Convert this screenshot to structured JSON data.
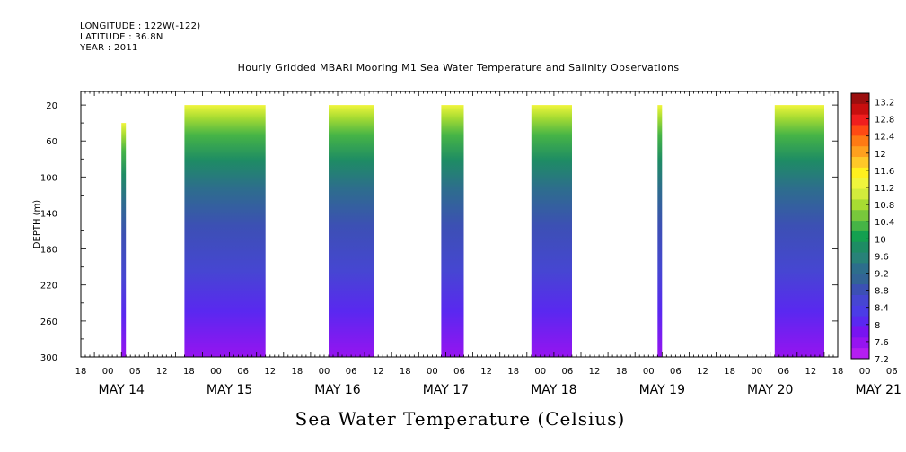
{
  "header": {
    "longitude": "LONGITUDE : 122W(-122)",
    "latitude": "LATITUDE : 36.8N",
    "year": "YEAR : 2011"
  },
  "chart_data": {
    "type": "heatmap",
    "title": "Hourly Gridded MBARI Mooring M1 Sea Water Temperature and Salinity Observations",
    "xlabel": "Sea Water Temperature (Celsius)",
    "ylabel": "DEPTH (m)",
    "y_ticks": [
      20,
      60,
      100,
      140,
      180,
      220,
      260,
      300
    ],
    "ylim": [
      300,
      5
    ],
    "y_inverted": true,
    "xlim_hours": [
      -9,
      159
    ],
    "x_hour_ticks": [
      "18",
      "00",
      "06",
      "12",
      "18",
      "00",
      "06",
      "12",
      "18",
      "00",
      "06",
      "12",
      "18",
      "00",
      "06",
      "12",
      "18",
      "00",
      "06",
      "12",
      "18",
      "00",
      "06",
      "12",
      "18",
      "00",
      "06",
      "12",
      "18",
      "00",
      "06",
      "12",
      "18",
      "00",
      "06",
      "12"
    ],
    "x_date_labels": [
      "MAY 14",
      "MAY 15",
      "MAY 16",
      "MAY 17",
      "MAY 18",
      "MAY 19",
      "MAY 20",
      "MAY 21"
    ],
    "colorbar": {
      "labels": [
        "13.2",
        "12.8",
        "12.4",
        "12",
        "11.6",
        "11.2",
        "10.8",
        "10.4",
        "10",
        "9.6",
        "9.2",
        "8.8",
        "8.4",
        "8",
        "7.6",
        "7.2"
      ],
      "range": [
        7.2,
        13.4
      ],
      "colors": [
        "#9b0f0f",
        "#c80f0f",
        "#f01e1e",
        "#ff4a14",
        "#ff7a14",
        "#ffa01e",
        "#ffc828",
        "#fff01e",
        "#f0f53c",
        "#d2ec3c",
        "#a8dc32",
        "#78c83c",
        "#46b446",
        "#14a050",
        "#1e8c64",
        "#288278",
        "#2d6e8c",
        "#326496",
        "#3c50b4",
        "#4646d2",
        "#4b3ce6",
        "#5a28f0",
        "#7814f0",
        "#9614f0",
        "#b41ef0"
      ]
    },
    "series": [
      {
        "name": "May 14 00h",
        "x": [
          0,
          1
        ],
        "depth_range": [
          40,
          300
        ]
      },
      {
        "name": "May 14 14h - May 15 08h",
        "x": [
          14,
          32
        ],
        "depth_range": [
          20,
          300
        ]
      },
      {
        "name": "May 15 22h - May 16 08h",
        "x": [
          46,
          56
        ],
        "depth_range": [
          20,
          300
        ]
      },
      {
        "name": "May 16 23h - May 17 04h",
        "x": [
          71,
          76
        ],
        "depth_range": [
          20,
          300
        ]
      },
      {
        "name": "May 17 19h - May 18 04h",
        "x": [
          91,
          100
        ],
        "depth_range": [
          20,
          300
        ]
      },
      {
        "name": "May 18 23h",
        "x": [
          119,
          120
        ],
        "depth_range": [
          20,
          300
        ]
      },
      {
        "name": "May 20 02h - May 20 13h",
        "x": [
          145,
          156
        ],
        "depth_range": [
          20,
          300
        ]
      }
    ]
  }
}
